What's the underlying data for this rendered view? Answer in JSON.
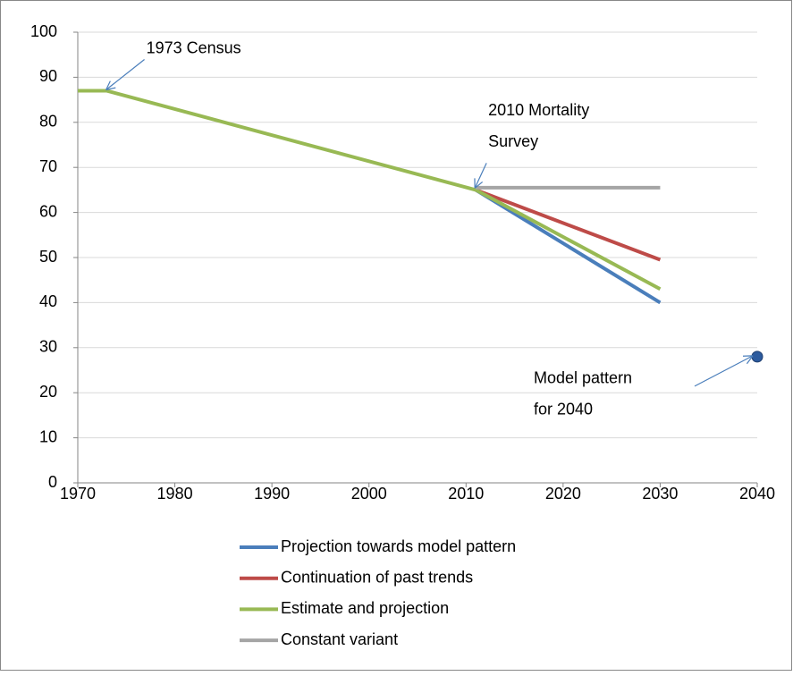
{
  "chart_data": {
    "type": "line",
    "x": [
      1970,
      1973,
      2011,
      2030
    ],
    "series": [
      {
        "name": "Projection towards model pattern",
        "color": "#4a7ebb",
        "values": [
          null,
          null,
          65,
          40
        ]
      },
      {
        "name": "Continuation of past trends",
        "color": "#be4b48",
        "values": [
          null,
          null,
          65,
          49.5
        ]
      },
      {
        "name": "Estimate and projection",
        "color": "#98b954",
        "values": [
          87,
          87,
          65,
          43
        ]
      },
      {
        "name": "Constant variant",
        "color": "#a5a5a5",
        "values": [
          null,
          null,
          65.5,
          65.5
        ]
      }
    ],
    "point": {
      "x": 2040,
      "y": 28,
      "color": "#2c5b9e"
    },
    "annotations": [
      {
        "lines": [
          "1973 Census"
        ],
        "x": 1973,
        "y": 87
      },
      {
        "lines": [
          "2010 Mortality",
          "Survey"
        ],
        "x": 2011,
        "y": 65
      },
      {
        "lines": [
          "Model pattern",
          "for 2040"
        ],
        "x": 2040,
        "y": 28
      }
    ],
    "xlim": [
      1970,
      2040
    ],
    "xticks": [
      1970,
      1980,
      1990,
      2000,
      2010,
      2020,
      2030,
      2040
    ],
    "ylim": [
      0,
      100
    ],
    "yticks": [
      0,
      10,
      20,
      30,
      40,
      50,
      60,
      70,
      80,
      90,
      100
    ],
    "grid": true,
    "legend": "bottom"
  }
}
